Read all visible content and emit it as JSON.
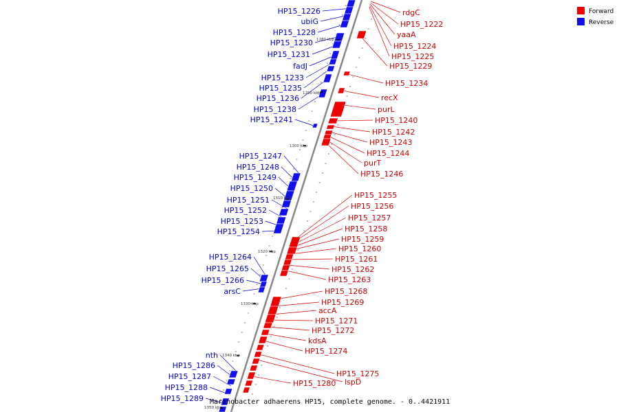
{
  "title": "Marinobacter adhaerens HP15, complete genome. - 0..4421911",
  "colors": {
    "forward": "#ee0000",
    "reverse": "#1010ee",
    "forward_line": "#dd0000",
    "reverse_line": "#0000dd",
    "backbone": "#888888"
  },
  "legend": [
    {
      "label": "Forward",
      "color": "#ee0000"
    },
    {
      "label": "Reverse",
      "color": "#1010ee"
    }
  ],
  "ticks": [
    "1280 kbp",
    "1290 kbp",
    "1300 kbp",
    "1310 kbp",
    "1320 kbp",
    "1330 kbp",
    "1340 kbp",
    "1350 kbp"
  ],
  "reverse_genes": [
    "HP15_1226",
    "ubiG",
    "HP15_1228",
    "HP15_1230",
    "HP15_1231",
    "fadJ",
    "HP15_1233",
    "HP15_1235",
    "HP15_1236",
    "HP15_1238",
    "HP15_1241",
    "HP15_1247",
    "HP15_1248",
    "HP15_1249",
    "HP15_1250",
    "HP15_1251",
    "HP15_1252",
    "HP15_1253",
    "HP15_1254",
    "HP15_1264",
    "HP15_1265",
    "HP15_1266",
    "arsC",
    "nth",
    "HP15_1286",
    "HP15_1287",
    "HP15_1288",
    "HP15_1289"
  ],
  "forward_genes": [
    "rdgC",
    "HP15_1222",
    "yaaA",
    "HP15_1224",
    "HP15_1225",
    "HP15_1229",
    "HP15_1234",
    "recX",
    "purL",
    "HP15_1240",
    "HP15_1242",
    "HP15_1243",
    "HP15_1244",
    "purT",
    "HP15_1246",
    "HP15_1255",
    "HP15_1256",
    "HP15_1257",
    "HP15_1258",
    "HP15_1259",
    "HP15_1260",
    "HP15_1261",
    "HP15_1262",
    "HP15_1263",
    "HP15_1268",
    "HP15_1269",
    "accA",
    "HP15_1271",
    "HP15_1272",
    "kdsA",
    "HP15_1274",
    "HP15_1275",
    "ispD",
    "HP15_1280"
  ]
}
